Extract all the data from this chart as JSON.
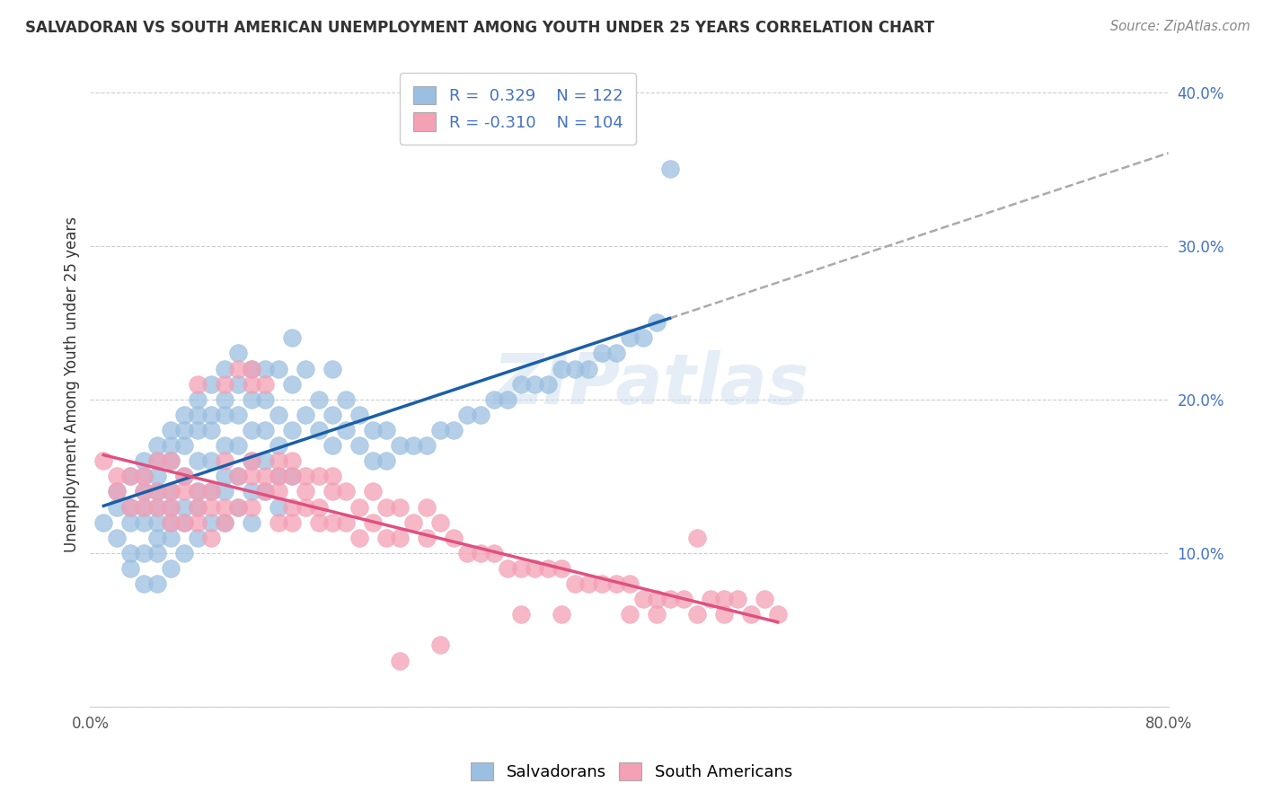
{
  "title": "SALVADORAN VS SOUTH AMERICAN UNEMPLOYMENT AMONG YOUTH UNDER 25 YEARS CORRELATION CHART",
  "source": "Source: ZipAtlas.com",
  "ylabel": "Unemployment Among Youth under 25 years",
  "xlim": [
    0.0,
    0.8
  ],
  "ylim": [
    0.0,
    0.42
  ],
  "xticks": [
    0.0,
    0.1,
    0.2,
    0.3,
    0.4,
    0.5,
    0.6,
    0.7,
    0.8
  ],
  "xticklabels": [
    "0.0%",
    "",
    "",
    "",
    "",
    "",
    "",
    "",
    "80.0%"
  ],
  "yticks": [
    0.0,
    0.1,
    0.2,
    0.3,
    0.4
  ],
  "yticklabels": [
    "",
    "10.0%",
    "20.0%",
    "30.0%",
    "40.0%"
  ],
  "blue_R": 0.329,
  "blue_N": 122,
  "pink_R": -0.31,
  "pink_N": 104,
  "blue_color": "#9bbfe0",
  "pink_color": "#f4a0b5",
  "blue_line_color": "#1a5fa8",
  "pink_line_color": "#e05080",
  "dash_color": "#aaaaaa",
  "grid_color": "#cccccc",
  "watermark": "ZIPatlas",
  "blue_scatter_x": [
    0.01,
    0.02,
    0.02,
    0.02,
    0.03,
    0.03,
    0.03,
    0.03,
    0.03,
    0.04,
    0.04,
    0.04,
    0.04,
    0.04,
    0.04,
    0.04,
    0.05,
    0.05,
    0.05,
    0.05,
    0.05,
    0.05,
    0.05,
    0.05,
    0.05,
    0.06,
    0.06,
    0.06,
    0.06,
    0.06,
    0.06,
    0.06,
    0.06,
    0.07,
    0.07,
    0.07,
    0.07,
    0.07,
    0.07,
    0.07,
    0.08,
    0.08,
    0.08,
    0.08,
    0.08,
    0.08,
    0.08,
    0.09,
    0.09,
    0.09,
    0.09,
    0.09,
    0.09,
    0.1,
    0.1,
    0.1,
    0.1,
    0.1,
    0.1,
    0.1,
    0.11,
    0.11,
    0.11,
    0.11,
    0.11,
    0.11,
    0.12,
    0.12,
    0.12,
    0.12,
    0.12,
    0.12,
    0.13,
    0.13,
    0.13,
    0.13,
    0.13,
    0.14,
    0.14,
    0.14,
    0.14,
    0.14,
    0.15,
    0.15,
    0.15,
    0.15,
    0.16,
    0.16,
    0.17,
    0.17,
    0.18,
    0.18,
    0.18,
    0.19,
    0.19,
    0.2,
    0.2,
    0.21,
    0.21,
    0.22,
    0.22,
    0.23,
    0.24,
    0.25,
    0.26,
    0.27,
    0.28,
    0.29,
    0.3,
    0.31,
    0.32,
    0.33,
    0.34,
    0.35,
    0.36,
    0.37,
    0.38,
    0.39,
    0.4,
    0.41,
    0.42,
    0.43
  ],
  "blue_scatter_y": [
    0.12,
    0.14,
    0.13,
    0.11,
    0.15,
    0.13,
    0.12,
    0.1,
    0.09,
    0.16,
    0.15,
    0.14,
    0.13,
    0.12,
    0.1,
    0.08,
    0.17,
    0.16,
    0.15,
    0.14,
    0.13,
    0.12,
    0.11,
    0.1,
    0.08,
    0.18,
    0.17,
    0.16,
    0.14,
    0.13,
    0.12,
    0.11,
    0.09,
    0.19,
    0.18,
    0.17,
    0.15,
    0.13,
    0.12,
    0.1,
    0.2,
    0.19,
    0.18,
    0.16,
    0.14,
    0.13,
    0.11,
    0.21,
    0.19,
    0.18,
    0.16,
    0.14,
    0.12,
    0.22,
    0.2,
    0.19,
    0.17,
    0.15,
    0.14,
    0.12,
    0.23,
    0.21,
    0.19,
    0.17,
    0.15,
    0.13,
    0.22,
    0.2,
    0.18,
    0.16,
    0.14,
    0.12,
    0.22,
    0.2,
    0.18,
    0.16,
    0.14,
    0.22,
    0.19,
    0.17,
    0.15,
    0.13,
    0.24,
    0.21,
    0.18,
    0.15,
    0.22,
    0.19,
    0.2,
    0.18,
    0.22,
    0.19,
    0.17,
    0.2,
    0.18,
    0.19,
    0.17,
    0.18,
    0.16,
    0.18,
    0.16,
    0.17,
    0.17,
    0.17,
    0.18,
    0.18,
    0.19,
    0.19,
    0.2,
    0.2,
    0.21,
    0.21,
    0.21,
    0.22,
    0.22,
    0.22,
    0.23,
    0.23,
    0.24,
    0.24,
    0.25,
    0.35
  ],
  "pink_scatter_x": [
    0.01,
    0.02,
    0.02,
    0.03,
    0.03,
    0.04,
    0.04,
    0.04,
    0.05,
    0.05,
    0.05,
    0.06,
    0.06,
    0.06,
    0.06,
    0.07,
    0.07,
    0.07,
    0.08,
    0.08,
    0.08,
    0.08,
    0.09,
    0.09,
    0.09,
    0.1,
    0.1,
    0.1,
    0.1,
    0.11,
    0.11,
    0.11,
    0.12,
    0.12,
    0.12,
    0.12,
    0.12,
    0.13,
    0.13,
    0.13,
    0.14,
    0.14,
    0.14,
    0.14,
    0.15,
    0.15,
    0.15,
    0.15,
    0.16,
    0.16,
    0.16,
    0.17,
    0.17,
    0.17,
    0.18,
    0.18,
    0.18,
    0.19,
    0.19,
    0.2,
    0.2,
    0.21,
    0.21,
    0.22,
    0.22,
    0.23,
    0.23,
    0.24,
    0.25,
    0.25,
    0.26,
    0.27,
    0.28,
    0.29,
    0.3,
    0.31,
    0.32,
    0.33,
    0.34,
    0.35,
    0.36,
    0.37,
    0.38,
    0.39,
    0.4,
    0.41,
    0.42,
    0.43,
    0.44,
    0.45,
    0.46,
    0.47,
    0.48,
    0.49,
    0.5,
    0.51,
    0.42,
    0.45,
    0.47,
    0.32,
    0.35,
    0.4,
    0.23,
    0.26
  ],
  "pink_scatter_y": [
    0.16,
    0.15,
    0.14,
    0.15,
    0.13,
    0.14,
    0.13,
    0.15,
    0.14,
    0.13,
    0.16,
    0.14,
    0.13,
    0.12,
    0.16,
    0.15,
    0.14,
    0.12,
    0.14,
    0.13,
    0.12,
    0.21,
    0.14,
    0.13,
    0.11,
    0.13,
    0.12,
    0.16,
    0.21,
    0.15,
    0.13,
    0.22,
    0.16,
    0.15,
    0.22,
    0.21,
    0.13,
    0.15,
    0.14,
    0.21,
    0.16,
    0.15,
    0.14,
    0.12,
    0.16,
    0.15,
    0.13,
    0.12,
    0.15,
    0.14,
    0.13,
    0.15,
    0.13,
    0.12,
    0.15,
    0.14,
    0.12,
    0.14,
    0.12,
    0.13,
    0.11,
    0.14,
    0.12,
    0.13,
    0.11,
    0.13,
    0.11,
    0.12,
    0.13,
    0.11,
    0.12,
    0.11,
    0.1,
    0.1,
    0.1,
    0.09,
    0.09,
    0.09,
    0.09,
    0.09,
    0.08,
    0.08,
    0.08,
    0.08,
    0.08,
    0.07,
    0.07,
    0.07,
    0.07,
    0.11,
    0.07,
    0.07,
    0.07,
    0.06,
    0.07,
    0.06,
    0.06,
    0.06,
    0.06,
    0.06,
    0.06,
    0.06,
    0.03,
    0.04
  ]
}
